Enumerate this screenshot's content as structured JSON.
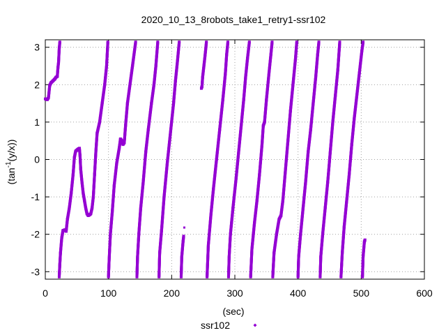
{
  "chart_data": {
    "type": "scatter",
    "title": "2020_10_13_8robots_take1_retry1-ssr102",
    "xlabel": "(sec)",
    "ylabel": "(tan⁻¹(y/x))",
    "ylabel_main": "(tan",
    "ylabel_sup": "-1",
    "ylabel_rest": "(y/x))",
    "xlim": [
      0,
      600
    ],
    "ylim": [
      -3.2,
      3.2
    ],
    "xticks": [
      0,
      100,
      200,
      300,
      400,
      500,
      600
    ],
    "yticks": [
      -3,
      -2,
      -1,
      0,
      1,
      2,
      3
    ],
    "grid": true,
    "legend_position": "bottom-center",
    "series": [
      {
        "name": "ssr102",
        "color": "#9400d3",
        "segments": [
          [
            [
              0,
              1.62
            ],
            [
              3,
              1.6
            ],
            [
              5,
              1.65
            ],
            [
              7,
              1.98
            ],
            [
              9,
              2.05
            ],
            [
              12,
              2.1
            ],
            [
              15,
              2.15
            ],
            [
              17,
              2.2
            ],
            [
              19,
              2.22
            ],
            [
              20,
              2.45
            ],
            [
              21,
              2.6
            ],
            [
              22,
              2.95
            ],
            [
              23,
              3.14
            ]
          ],
          [
            [
              22,
              -3.14
            ],
            [
              23,
              -2.8
            ],
            [
              24,
              -2.5
            ],
            [
              26,
              -2.1
            ],
            [
              28,
              -1.9
            ],
            [
              31,
              -1.88
            ],
            [
              33,
              -1.92
            ],
            [
              35,
              -1.6
            ],
            [
              38,
              -1.3
            ],
            [
              41,
              -0.9
            ],
            [
              44,
              -0.4
            ],
            [
              46,
              0.05
            ],
            [
              48,
              0.22
            ],
            [
              50,
              0.25
            ],
            [
              52,
              0.28
            ],
            [
              54,
              0.3
            ],
            [
              55,
              0.1
            ],
            [
              56,
              -0.25
            ],
            [
              58,
              -0.6
            ],
            [
              60,
              -0.9
            ],
            [
              62,
              -1.1
            ],
            [
              64,
              -1.3
            ],
            [
              66,
              -1.45
            ],
            [
              68,
              -1.5
            ],
            [
              70,
              -1.48
            ],
            [
              72,
              -1.45
            ],
            [
              74,
              -1.3
            ],
            [
              76,
              -1.0
            ],
            [
              78,
              -0.4
            ],
            [
              80,
              0.2
            ],
            [
              82,
              0.7
            ],
            [
              86,
              1.0
            ],
            [
              90,
              1.5
            ],
            [
              94,
              2.0
            ],
            [
              97,
              2.5
            ],
            [
              99,
              3.14
            ]
          ],
          [
            [
              100,
              -3.14
            ],
            [
              101,
              -2.7
            ],
            [
              103,
              -2.0
            ],
            [
              106,
              -1.4
            ],
            [
              109,
              -0.7
            ],
            [
              113,
              -0.1
            ],
            [
              117,
              0.3
            ],
            [
              119,
              0.55
            ],
            [
              121,
              0.5
            ],
            [
              123,
              0.4
            ],
            [
              125,
              0.45
            ],
            [
              127,
              0.9
            ],
            [
              130,
              1.5
            ],
            [
              134,
              2.0
            ],
            [
              138,
              2.5
            ],
            [
              143,
              3.14
            ]
          ],
          [
            [
              145,
              -3.14
            ],
            [
              146,
              -2.6
            ],
            [
              148,
              -2.0
            ],
            [
              151,
              -1.3
            ],
            [
              155,
              -0.6
            ],
            [
              159,
              0.2
            ],
            [
              163,
              0.8
            ],
            [
              168,
              1.5
            ],
            [
              172,
              2.0
            ],
            [
              175,
              2.5
            ],
            [
              178,
              3.14
            ]
          ],
          [
            [
              180,
              -3.14
            ],
            [
              181,
              -2.5
            ],
            [
              184,
              -1.9
            ],
            [
              188,
              -1.0
            ],
            [
              193,
              -0.1
            ],
            [
              198,
              0.7
            ],
            [
              203,
              1.5
            ],
            [
              206,
              2.1
            ],
            [
              209,
              2.6
            ],
            [
              212,
              3.14
            ]
          ],
          [
            [
              215,
              -3.14
            ],
            [
              216,
              -2.6
            ],
            [
              218,
              -2.2
            ],
            [
              219,
              -2.05
            ]
          ],
          [
            [
              220,
              -1.82
            ]
          ],
          [
            [
              247,
              1.9
            ],
            [
              248,
              1.95
            ],
            [
              249,
              2.2
            ],
            [
              251,
              2.5
            ],
            [
              253,
              2.8
            ],
            [
              255,
              3.14
            ]
          ],
          [
            [
              256,
              -3.14
            ],
            [
              258,
              -2.3
            ],
            [
              262,
              -1.5
            ],
            [
              266,
              -0.8
            ],
            [
              271,
              0.0
            ],
            [
              276,
              0.8
            ],
            [
              281,
              1.6
            ],
            [
              285,
              2.3
            ],
            [
              287,
              2.8
            ],
            [
              289,
              3.14
            ]
          ],
          [
            [
              290,
              -3.14
            ],
            [
              291,
              -2.6
            ],
            [
              293,
              -2.0
            ],
            [
              297,
              -1.3
            ],
            [
              302,
              -0.5
            ],
            [
              306,
              0.2
            ],
            [
              310,
              0.9
            ],
            [
              314,
              1.6
            ],
            [
              317,
              2.2
            ],
            [
              320,
              2.7
            ],
            [
              323,
              3.14
            ]
          ],
          [
            [
              325,
              -3.14
            ],
            [
              327,
              -2.4
            ],
            [
              331,
              -1.7
            ],
            [
              335,
              -1.1
            ],
            [
              339,
              -0.4
            ],
            [
              343,
              0.4
            ],
            [
              345,
              0.9
            ],
            [
              347,
              1.0
            ],
            [
              350,
              1.6
            ],
            [
              354,
              2.3
            ],
            [
              357,
              2.8
            ],
            [
              359,
              3.14
            ]
          ],
          [
            [
              360,
              -3.14
            ],
            [
              362,
              -2.5
            ],
            [
              366,
              -2.0
            ],
            [
              370,
              -1.6
            ],
            [
              373,
              -1.5
            ],
            [
              376,
              -1.1
            ],
            [
              380,
              -0.3
            ],
            [
              384,
              0.5
            ],
            [
              388,
              1.3
            ],
            [
              392,
              2.0
            ],
            [
              396,
              2.7
            ],
            [
              398,
              3.14
            ]
          ],
          [
            [
              400,
              -3.14
            ],
            [
              401,
              -2.6
            ],
            [
              404,
              -2.0
            ],
            [
              408,
              -1.3
            ],
            [
              412,
              -0.6
            ],
            [
              416,
              0.2
            ],
            [
              420,
              0.8
            ],
            [
              424,
              1.5
            ],
            [
              428,
              2.2
            ],
            [
              431,
              2.8
            ],
            [
              433,
              3.14
            ]
          ],
          [
            [
              435,
              -3.14
            ],
            [
              436,
              -2.6
            ],
            [
              439,
              -2.0
            ],
            [
              443,
              -1.3
            ],
            [
              447,
              -0.6
            ],
            [
              451,
              0.2
            ],
            [
              455,
              1.0
            ],
            [
              459,
              1.7
            ],
            [
              463,
              2.4
            ],
            [
              466,
              3.14
            ]
          ],
          [
            [
              468,
              -3.14
            ],
            [
              470,
              -2.5
            ],
            [
              473,
              -1.8
            ],
            [
              477,
              -1.1
            ],
            [
              481,
              -0.4
            ],
            [
              485,
              0.4
            ],
            [
              489,
              1.1
            ],
            [
              493,
              1.7
            ],
            [
              497,
              2.3
            ],
            [
              501,
              2.9
            ],
            [
              503,
              3.14
            ]
          ],
          [
            [
              502,
              -3.14
            ],
            [
              503,
              -2.6
            ],
            [
              505,
              -2.2
            ],
            [
              506,
              -2.15
            ]
          ]
        ]
      }
    ]
  }
}
